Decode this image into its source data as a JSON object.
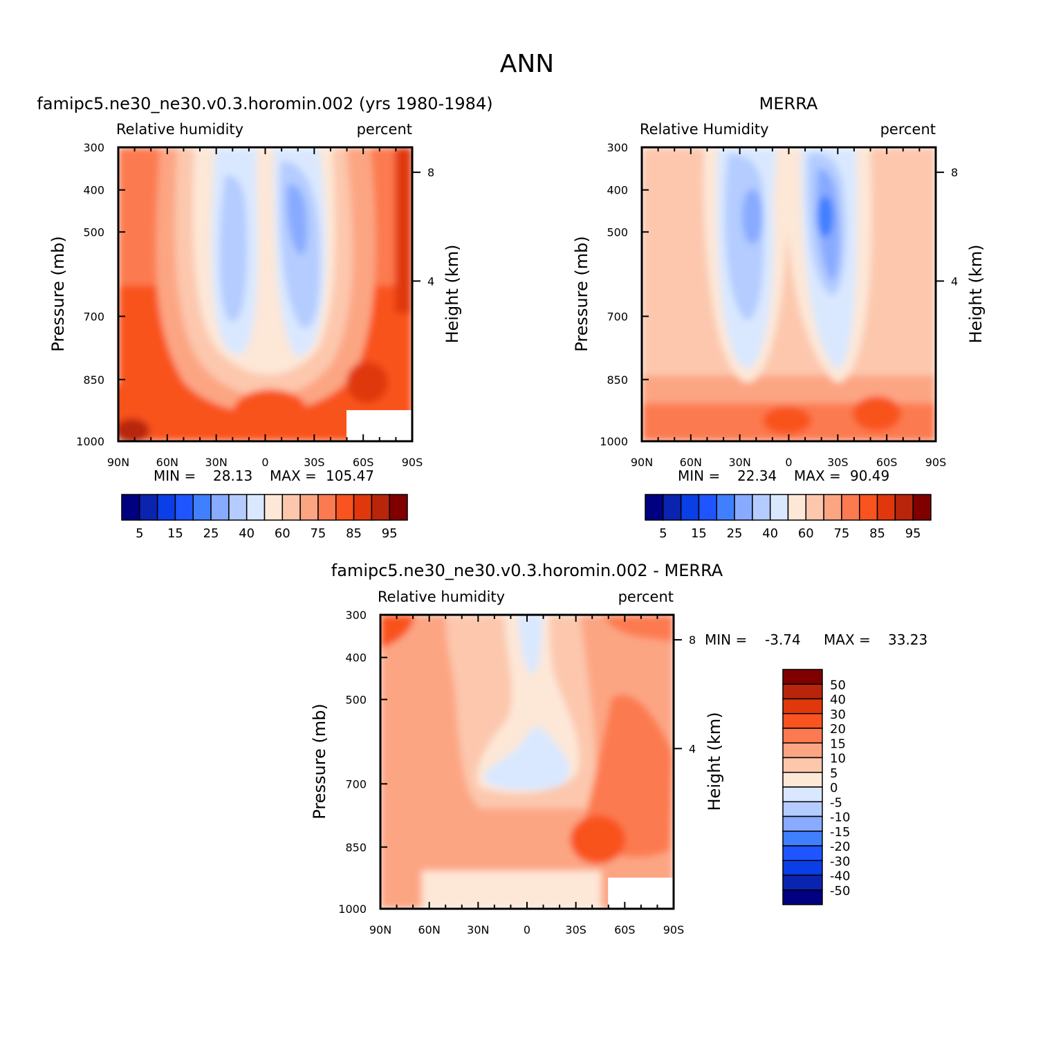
{
  "figure_title": "ANN",
  "palette": {
    "rh": [
      "#000080",
      "#0b24b0",
      "#0a3ee6",
      "#1f55ff",
      "#4080ff",
      "#88aaff",
      "#b4ccff",
      "#d9e8ff",
      "#fde7d7",
      "#fcc7ad",
      "#fca583",
      "#fc7a50",
      "#f9531f",
      "#e0380c",
      "#b8250a",
      "#800000"
    ],
    "diff": [
      "#800000",
      "#b8250a",
      "#e0380c",
      "#f9531f",
      "#fc7a50",
      "#fca583",
      "#fcc7ad",
      "#fde7d7",
      "#d9e8ff",
      "#b4ccff",
      "#88aaff",
      "#4080ff",
      "#1f55ff",
      "#0a3ee6",
      "#0b24b0",
      "#000080"
    ]
  },
  "chart_data": [
    {
      "type": "heatmap",
      "title": "famipc5.ne30_ne30.v0.3.horomin.002 (yrs 1980-1984)",
      "left_label": "Relative humidity",
      "right_label": "percent",
      "ylabel": "Pressure (mb)",
      "y2label": "Height (km)",
      "x_ticks": [
        "90N",
        "60N",
        "30N",
        "0",
        "30S",
        "60S",
        "90S"
      ],
      "y_ticks": [
        "300",
        "400",
        "500",
        "700",
        "850",
        "1000"
      ],
      "y2_ticks": [
        "8",
        "4"
      ],
      "ylim": [
        1000,
        300
      ],
      "min_label": "MIN =",
      "min": "28.13",
      "max_label": "MAX =",
      "max": "105.47",
      "colorbar_labels": [
        "5",
        "15",
        "25",
        "40",
        "60",
        "75",
        "85",
        "95"
      ],
      "contour_levels": [
        5,
        10,
        15,
        20,
        25,
        30,
        40,
        50,
        60,
        70,
        75,
        80,
        85,
        90,
        95
      ]
    },
    {
      "type": "heatmap",
      "title": "MERRA",
      "left_label": "Relative Humidity",
      "right_label": "percent",
      "ylabel": "Pressure (mb)",
      "y2label": "Height (km)",
      "x_ticks": [
        "90N",
        "60N",
        "30N",
        "0",
        "30S",
        "60S",
        "90S"
      ],
      "y_ticks": [
        "300",
        "400",
        "500",
        "700",
        "850",
        "1000"
      ],
      "y2_ticks": [
        "8",
        "4"
      ],
      "ylim": [
        1000,
        300
      ],
      "min_label": "MIN =",
      "min": "22.34",
      "max_label": "MAX =",
      "max": "90.49",
      "colorbar_labels": [
        "5",
        "15",
        "25",
        "40",
        "60",
        "75",
        "85",
        "95"
      ],
      "contour_levels": [
        5,
        10,
        15,
        20,
        25,
        30,
        40,
        50,
        60,
        70,
        75,
        80,
        85,
        90,
        95
      ]
    },
    {
      "type": "heatmap",
      "title": "famipc5.ne30_ne30.v0.3.horomin.002 - MERRA",
      "left_label": "Relative humidity",
      "right_label": "percent",
      "ylabel": "Pressure (mb)",
      "y2label": "Height (km)",
      "x_ticks": [
        "90N",
        "60N",
        "30N",
        "0",
        "30S",
        "60S",
        "90S"
      ],
      "y_ticks": [
        "300",
        "400",
        "500",
        "700",
        "850",
        "1000"
      ],
      "y2_ticks": [
        "8",
        "4"
      ],
      "ylim": [
        1000,
        300
      ],
      "min_label": "MIN =",
      "min": "-3.74",
      "max_label": "MAX =",
      "max": "33.23",
      "colorbar_labels": [
        "50",
        "40",
        "30",
        "20",
        "15",
        "10",
        "5",
        "0",
        "-5",
        "-10",
        "-15",
        "-20",
        "-30",
        "-40",
        "-50"
      ],
      "contour_levels": [
        -50,
        -40,
        -30,
        -20,
        -15,
        -10,
        -5,
        0,
        5,
        10,
        15,
        20,
        30,
        40,
        50
      ]
    }
  ]
}
